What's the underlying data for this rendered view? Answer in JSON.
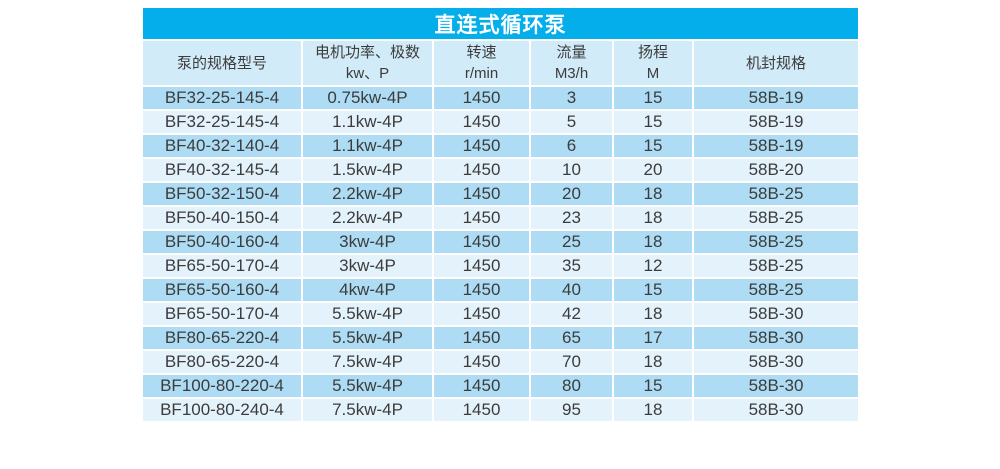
{
  "table": {
    "title": "直连式循环泵",
    "columns": [
      {
        "id": "pump-model",
        "lines": [
          "泵的规格型号"
        ]
      },
      {
        "id": "motor-power",
        "lines": [
          "电机功率、极数",
          "kw、P"
        ]
      },
      {
        "id": "speed",
        "lines": [
          "转速",
          "r/min"
        ]
      },
      {
        "id": "flow",
        "lines": [
          "流量",
          "M3/h"
        ]
      },
      {
        "id": "head",
        "lines": [
          "扬程",
          "M"
        ]
      },
      {
        "id": "seal-spec",
        "lines": [
          "机封规格"
        ]
      }
    ],
    "rows": [
      [
        "BF32-25-145-4",
        "0.75kw-4P",
        "1450",
        "3",
        "15",
        "58B-19"
      ],
      [
        "BF32-25-145-4",
        "1.1kw-4P",
        "1450",
        "5",
        "15",
        "58B-19"
      ],
      [
        "BF40-32-140-4",
        "1.1kw-4P",
        "1450",
        "6",
        "15",
        "58B-19"
      ],
      [
        "BF40-32-145-4",
        "1.5kw-4P",
        "1450",
        "10",
        "20",
        "58B-20"
      ],
      [
        "BF50-32-150-4",
        "2.2kw-4P",
        "1450",
        "20",
        "18",
        "58B-25"
      ],
      [
        "BF50-40-150-4",
        "2.2kw-4P",
        "1450",
        "23",
        "18",
        "58B-25"
      ],
      [
        "BF50-40-160-4",
        "3kw-4P",
        "1450",
        "25",
        "18",
        "58B-25"
      ],
      [
        "BF65-50-170-4",
        "3kw-4P",
        "1450",
        "35",
        "12",
        "58B-25"
      ],
      [
        "BF65-50-160-4",
        "4kw-4P",
        "1450",
        "40",
        "15",
        "58B-25"
      ],
      [
        "BF65-50-170-4",
        "5.5kw-4P",
        "1450",
        "42",
        "18",
        "58B-30"
      ],
      [
        "BF80-65-220-4",
        "5.5kw-4P",
        "1450",
        "65",
        "17",
        "58B-30"
      ],
      [
        "BF80-65-220-4",
        "7.5kw-4P",
        "1450",
        "70",
        "18",
        "58B-30"
      ],
      [
        "BF100-80-220-4",
        "5.5kw-4P",
        "1450",
        "80",
        "15",
        "58B-30"
      ],
      [
        "BF100-80-240-4",
        "7.5kw-4P",
        "1450",
        "95",
        "18",
        "58B-30"
      ]
    ]
  },
  "colors": {
    "title_bar_bg": "#03aeea",
    "title_text": "#ffffff",
    "header_bg": "#d2ebf8",
    "row_odd_bg": "#aedcf4",
    "row_even_bg": "#e4f2fb",
    "cell_text": "#3c3c3c",
    "separator": "#ffffff"
  }
}
